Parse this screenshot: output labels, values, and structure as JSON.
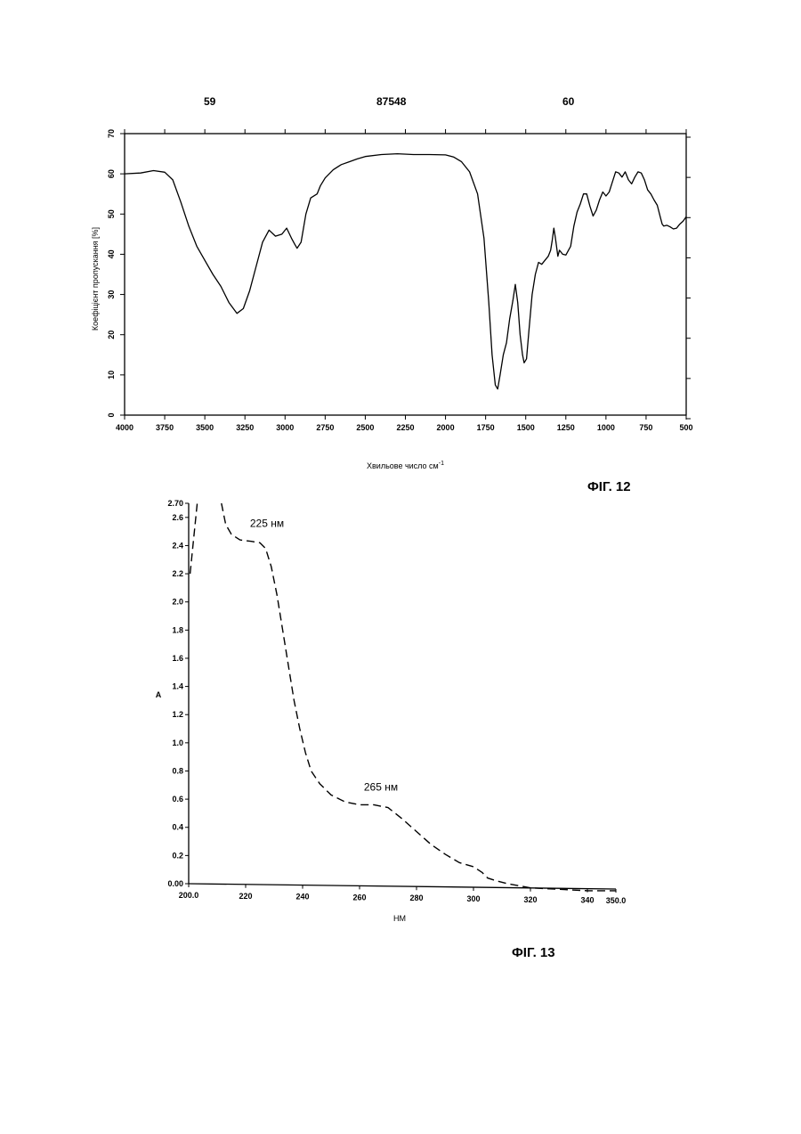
{
  "header": {
    "page_left": "59",
    "patent_number": "87548",
    "page_right": "60"
  },
  "fig12": {
    "label": "ФІГ. 12",
    "chart_data": {
      "type": "line",
      "xlabel": "Хвильове число см",
      "xlabel_sup": "-1",
      "ylabel": "Коефіцієнт пропускання [%]",
      "xlim": [
        4000,
        500
      ],
      "ylim": [
        0,
        70
      ],
      "x_ticks": [
        "4000",
        "3750",
        "3500",
        "3250",
        "3000",
        "2750",
        "2500",
        "2250",
        "2000",
        "1750",
        "1500",
        "1250",
        "1000",
        "750",
        "500"
      ],
      "y_ticks": [
        "0",
        "10",
        "20",
        "30",
        "40",
        "50",
        "60",
        "70"
      ],
      "series": [
        {
          "points": [
            [
              4000,
              60
            ],
            [
              3900,
              60.2
            ],
            [
              3820,
              60.8
            ],
            [
              3750,
              60.4
            ],
            [
              3700,
              58.5
            ],
            [
              3650,
              53
            ],
            [
              3600,
              47
            ],
            [
              3550,
              42
            ],
            [
              3500,
              38.5
            ],
            [
              3450,
              35
            ],
            [
              3400,
              32
            ],
            [
              3350,
              28
            ],
            [
              3300,
              25.3
            ],
            [
              3260,
              26.5
            ],
            [
              3220,
              31
            ],
            [
              3180,
              37
            ],
            [
              3140,
              43
            ],
            [
              3100,
              46
            ],
            [
              3060,
              44.5
            ],
            [
              3020,
              45
            ],
            [
              2990,
              46.5
            ],
            [
              2960,
              44
            ],
            [
              2940,
              42.5
            ],
            [
              2925,
              41.5
            ],
            [
              2900,
              43
            ],
            [
              2870,
              50
            ],
            [
              2840,
              54
            ],
            [
              2800,
              55
            ],
            [
              2780,
              57
            ],
            [
              2750,
              59
            ],
            [
              2700,
              61
            ],
            [
              2650,
              62.3
            ],
            [
              2600,
              63
            ],
            [
              2550,
              63.7
            ],
            [
              2500,
              64.3
            ],
            [
              2400,
              64.8
            ],
            [
              2300,
              65
            ],
            [
              2200,
              64.8
            ],
            [
              2100,
              64.8
            ],
            [
              2000,
              64.7
            ],
            [
              1950,
              64.2
            ],
            [
              1900,
              63
            ],
            [
              1850,
              60.5
            ],
            [
              1800,
              55
            ],
            [
              1760,
              44
            ],
            [
              1730,
              28
            ],
            [
              1710,
              15
            ],
            [
              1690,
              7.5
            ],
            [
              1675,
              6.5
            ],
            [
              1660,
              10
            ],
            [
              1640,
              15
            ],
            [
              1620,
              18
            ],
            [
              1600,
              24
            ],
            [
              1580,
              28.5
            ],
            [
              1565,
              32.5
            ],
            [
              1550,
              28
            ],
            [
              1535,
              20
            ],
            [
              1520,
              15
            ],
            [
              1510,
              13
            ],
            [
              1495,
              14
            ],
            [
              1480,
              21
            ],
            [
              1460,
              30
            ],
            [
              1440,
              35
            ],
            [
              1420,
              38
            ],
            [
              1400,
              37.5
            ],
            [
              1380,
              38.5
            ],
            [
              1360,
              39.5
            ],
            [
              1345,
              41
            ],
            [
              1335,
              43.5
            ],
            [
              1325,
              46.5
            ],
            [
              1315,
              44
            ],
            [
              1300,
              39.5
            ],
            [
              1290,
              41
            ],
            [
              1270,
              40
            ],
            [
              1250,
              39.8
            ],
            [
              1220,
              42
            ],
            [
              1200,
              47
            ],
            [
              1180,
              50.5
            ],
            [
              1160,
              52.5
            ],
            [
              1140,
              55
            ],
            [
              1120,
              55
            ],
            [
              1100,
              52
            ],
            [
              1080,
              49.5
            ],
            [
              1060,
              51
            ],
            [
              1040,
              53.5
            ],
            [
              1020,
              55.5
            ],
            [
              1000,
              54.5
            ],
            [
              980,
              55.5
            ],
            [
              960,
              58
            ],
            [
              940,
              60.5
            ],
            [
              920,
              60.2
            ],
            [
              900,
              59.2
            ],
            [
              880,
              60.5
            ],
            [
              860,
              58.5
            ],
            [
              840,
              57.5
            ],
            [
              820,
              59.2
            ],
            [
              800,
              60.5
            ],
            [
              780,
              60.2
            ],
            [
              760,
              58.5
            ],
            [
              740,
              56
            ],
            [
              720,
              55
            ],
            [
              700,
              53.5
            ],
            [
              680,
              52.2
            ],
            [
              660,
              49
            ],
            [
              650,
              47.5
            ],
            [
              640,
              47
            ],
            [
              620,
              47.2
            ],
            [
              600,
              46.8
            ],
            [
              580,
              46.3
            ],
            [
              560,
              46.5
            ],
            [
              540,
              47.5
            ],
            [
              520,
              48.2
            ],
            [
              500,
              49.3
            ]
          ]
        }
      ]
    }
  },
  "fig13": {
    "label": "ФІГ. 13",
    "chart_data": {
      "type": "line",
      "xlabel": "НМ",
      "ylabel": "A",
      "xlim": [
        200,
        350
      ],
      "ylim": [
        0,
        2.7
      ],
      "x_ticks": [
        "200.0",
        "220",
        "240",
        "260",
        "280",
        "300",
        "320",
        "340",
        "350.0"
      ],
      "y_ticks": [
        "0.00",
        "0.2",
        "0.4",
        "0.6",
        "0.8",
        "1.0",
        "1.2",
        "1.4",
        "1.6",
        "1.8",
        "2.0",
        "2.2",
        "2.4",
        "2.6",
        "2.70"
      ],
      "annotations": [
        {
          "text": "225 нм",
          "x": 225,
          "y": 2.43
        },
        {
          "text": "265 нм",
          "x": 265,
          "y": 0.56
        }
      ],
      "series": [
        {
          "dashed": true,
          "segments": [
            [
              [
                200.5,
                2.2
              ],
              [
                201.5,
                2.4
              ],
              [
                202.5,
                2.6
              ],
              [
                203.0,
                2.7
              ]
            ],
            [
              [
                211.5,
                2.7
              ],
              [
                213.0,
                2.55
              ],
              [
                215.0,
                2.48
              ],
              [
                218.0,
                2.44
              ],
              [
                222.0,
                2.43
              ],
              [
                225.0,
                2.42
              ],
              [
                227.0,
                2.38
              ],
              [
                229.0,
                2.25
              ],
              [
                231.0,
                2.05
              ],
              [
                233.0,
                1.8
              ],
              [
                235.0,
                1.55
              ],
              [
                237.0,
                1.3
              ],
              [
                239.0,
                1.1
              ],
              [
                241.0,
                0.93
              ],
              [
                243.0,
                0.8
              ],
              [
                246.0,
                0.71
              ],
              [
                250.0,
                0.63
              ],
              [
                255.0,
                0.58
              ],
              [
                260.0,
                0.56
              ],
              [
                265.0,
                0.56
              ],
              [
                270.0,
                0.54
              ],
              [
                275.0,
                0.46
              ],
              [
                280.0,
                0.37
              ],
              [
                285.0,
                0.28
              ],
              [
                290.0,
                0.21
              ],
              [
                295.0,
                0.15
              ],
              [
                300.0,
                0.12
              ],
              [
                303.0,
                0.08
              ],
              [
                305.0,
                0.04
              ],
              [
                308.0,
                0.02
              ],
              [
                312.0,
                0.0
              ],
              [
                320.0,
                -0.03
              ],
              [
                330.0,
                -0.04
              ],
              [
                340.0,
                -0.05
              ],
              [
                350.0,
                -0.05
              ]
            ]
          ]
        }
      ]
    }
  }
}
